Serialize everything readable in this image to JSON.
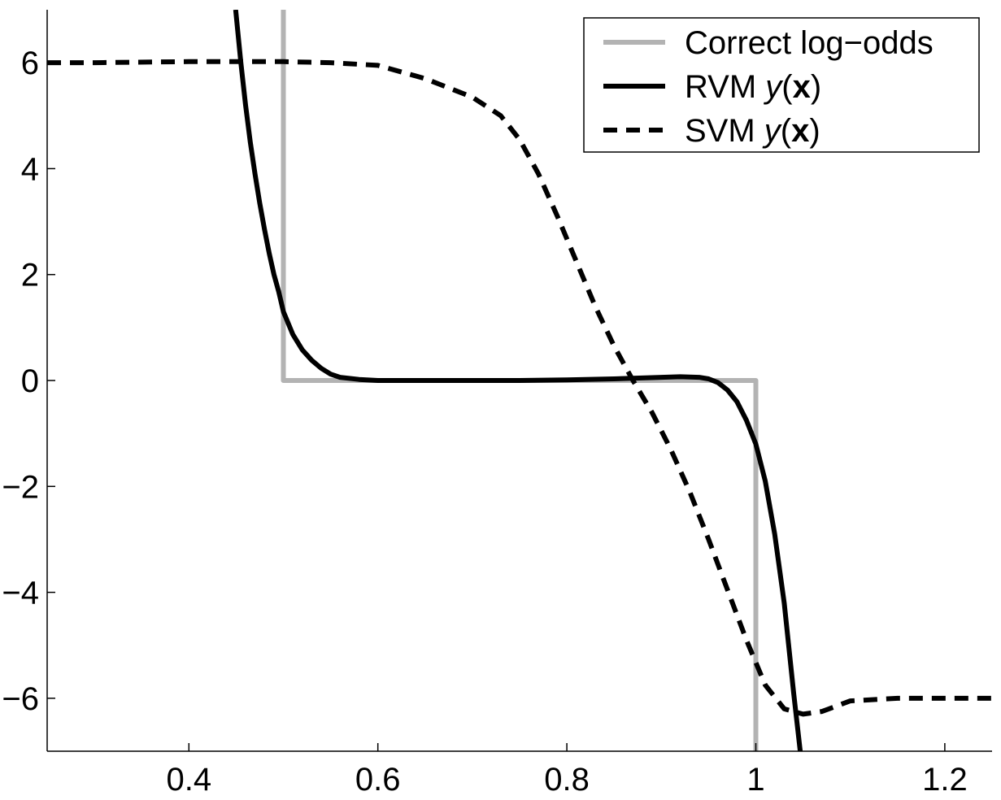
{
  "chart_data": {
    "type": "line",
    "title": "",
    "xlabel": "",
    "ylabel": "",
    "xlim": [
      0.25,
      1.25
    ],
    "ylim": [
      -7,
      7
    ],
    "grid": false,
    "legend_position": "top-right",
    "x_ticks": [
      {
        "value": 0.4,
        "label": "0.4"
      },
      {
        "value": 0.6,
        "label": "0.6"
      },
      {
        "value": 0.8,
        "label": "0.8"
      },
      {
        "value": 1.0,
        "label": "1"
      },
      {
        "value": 1.2,
        "label": "1.2"
      }
    ],
    "y_ticks": [
      {
        "value": 6,
        "label": "6"
      },
      {
        "value": 4,
        "label": "4"
      },
      {
        "value": 2,
        "label": "2"
      },
      {
        "value": 0,
        "label": "0"
      },
      {
        "value": -2,
        "label": "−2"
      },
      {
        "value": -4,
        "label": "−4"
      },
      {
        "value": -6,
        "label": "−6"
      }
    ],
    "series": [
      {
        "name": "Correct log−odds",
        "legend_prefix": "Correct log−odds",
        "legend_italic": "",
        "legend_bold": "",
        "color": "#b3b3b3",
        "style": "solid",
        "points": [
          [
            0.5,
            7
          ],
          [
            0.5,
            0
          ],
          [
            1.0,
            0
          ],
          [
            1.0,
            -7
          ]
        ]
      },
      {
        "name": "RVM y(x)",
        "legend_prefix": "RVM ",
        "legend_italic": "y",
        "legend_bold": "x",
        "color": "#000000",
        "style": "solid",
        "points": [
          [
            0.4495,
            7.0
          ],
          [
            0.455,
            6.0
          ],
          [
            0.46,
            5.2
          ],
          [
            0.465,
            4.5
          ],
          [
            0.47,
            3.9
          ],
          [
            0.475,
            3.35
          ],
          [
            0.48,
            2.85
          ],
          [
            0.485,
            2.4
          ],
          [
            0.49,
            2.0
          ],
          [
            0.495,
            1.68
          ],
          [
            0.5,
            1.3
          ],
          [
            0.51,
            0.87
          ],
          [
            0.52,
            0.58
          ],
          [
            0.53,
            0.38
          ],
          [
            0.54,
            0.23
          ],
          [
            0.55,
            0.12
          ],
          [
            0.56,
            0.06
          ],
          [
            0.58,
            0.02
          ],
          [
            0.6,
            0.0
          ],
          [
            0.65,
            0.0
          ],
          [
            0.7,
            0.0
          ],
          [
            0.75,
            0.0
          ],
          [
            0.8,
            0.01
          ],
          [
            0.85,
            0.03
          ],
          [
            0.9,
            0.06
          ],
          [
            0.92,
            0.07
          ],
          [
            0.94,
            0.06
          ],
          [
            0.95,
            0.03
          ],
          [
            0.96,
            -0.04
          ],
          [
            0.97,
            -0.18
          ],
          [
            0.98,
            -0.4
          ],
          [
            0.99,
            -0.75
          ],
          [
            1.0,
            -1.2
          ],
          [
            1.01,
            -1.9
          ],
          [
            1.02,
            -2.9
          ],
          [
            1.03,
            -4.2
          ],
          [
            1.04,
            -5.9
          ],
          [
            1.047,
            -7.0
          ]
        ]
      },
      {
        "name": "SVM y(x)",
        "legend_prefix": "SVM ",
        "legend_italic": "y",
        "legend_bold": "x",
        "color": "#000000",
        "style": "dashed",
        "points": [
          [
            0.25,
            6.0
          ],
          [
            0.3,
            6.0
          ],
          [
            0.4,
            6.02
          ],
          [
            0.5,
            6.02
          ],
          [
            0.55,
            6.0
          ],
          [
            0.6,
            5.95
          ],
          [
            0.65,
            5.7
          ],
          [
            0.7,
            5.35
          ],
          [
            0.73,
            5.0
          ],
          [
            0.75,
            4.55
          ],
          [
            0.77,
            3.9
          ],
          [
            0.79,
            3.1
          ],
          [
            0.81,
            2.25
          ],
          [
            0.83,
            1.4
          ],
          [
            0.85,
            0.65
          ],
          [
            0.87,
            0.0
          ],
          [
            0.89,
            -0.6
          ],
          [
            0.91,
            -1.3
          ],
          [
            0.93,
            -2.1
          ],
          [
            0.95,
            -3.0
          ],
          [
            0.97,
            -3.95
          ],
          [
            0.99,
            -4.9
          ],
          [
            1.01,
            -5.75
          ],
          [
            1.03,
            -6.2
          ],
          [
            1.05,
            -6.3
          ],
          [
            1.07,
            -6.25
          ],
          [
            1.1,
            -6.05
          ],
          [
            1.15,
            -6.0
          ],
          [
            1.2,
            -6.0
          ],
          [
            1.25,
            -6.0
          ]
        ]
      }
    ]
  }
}
